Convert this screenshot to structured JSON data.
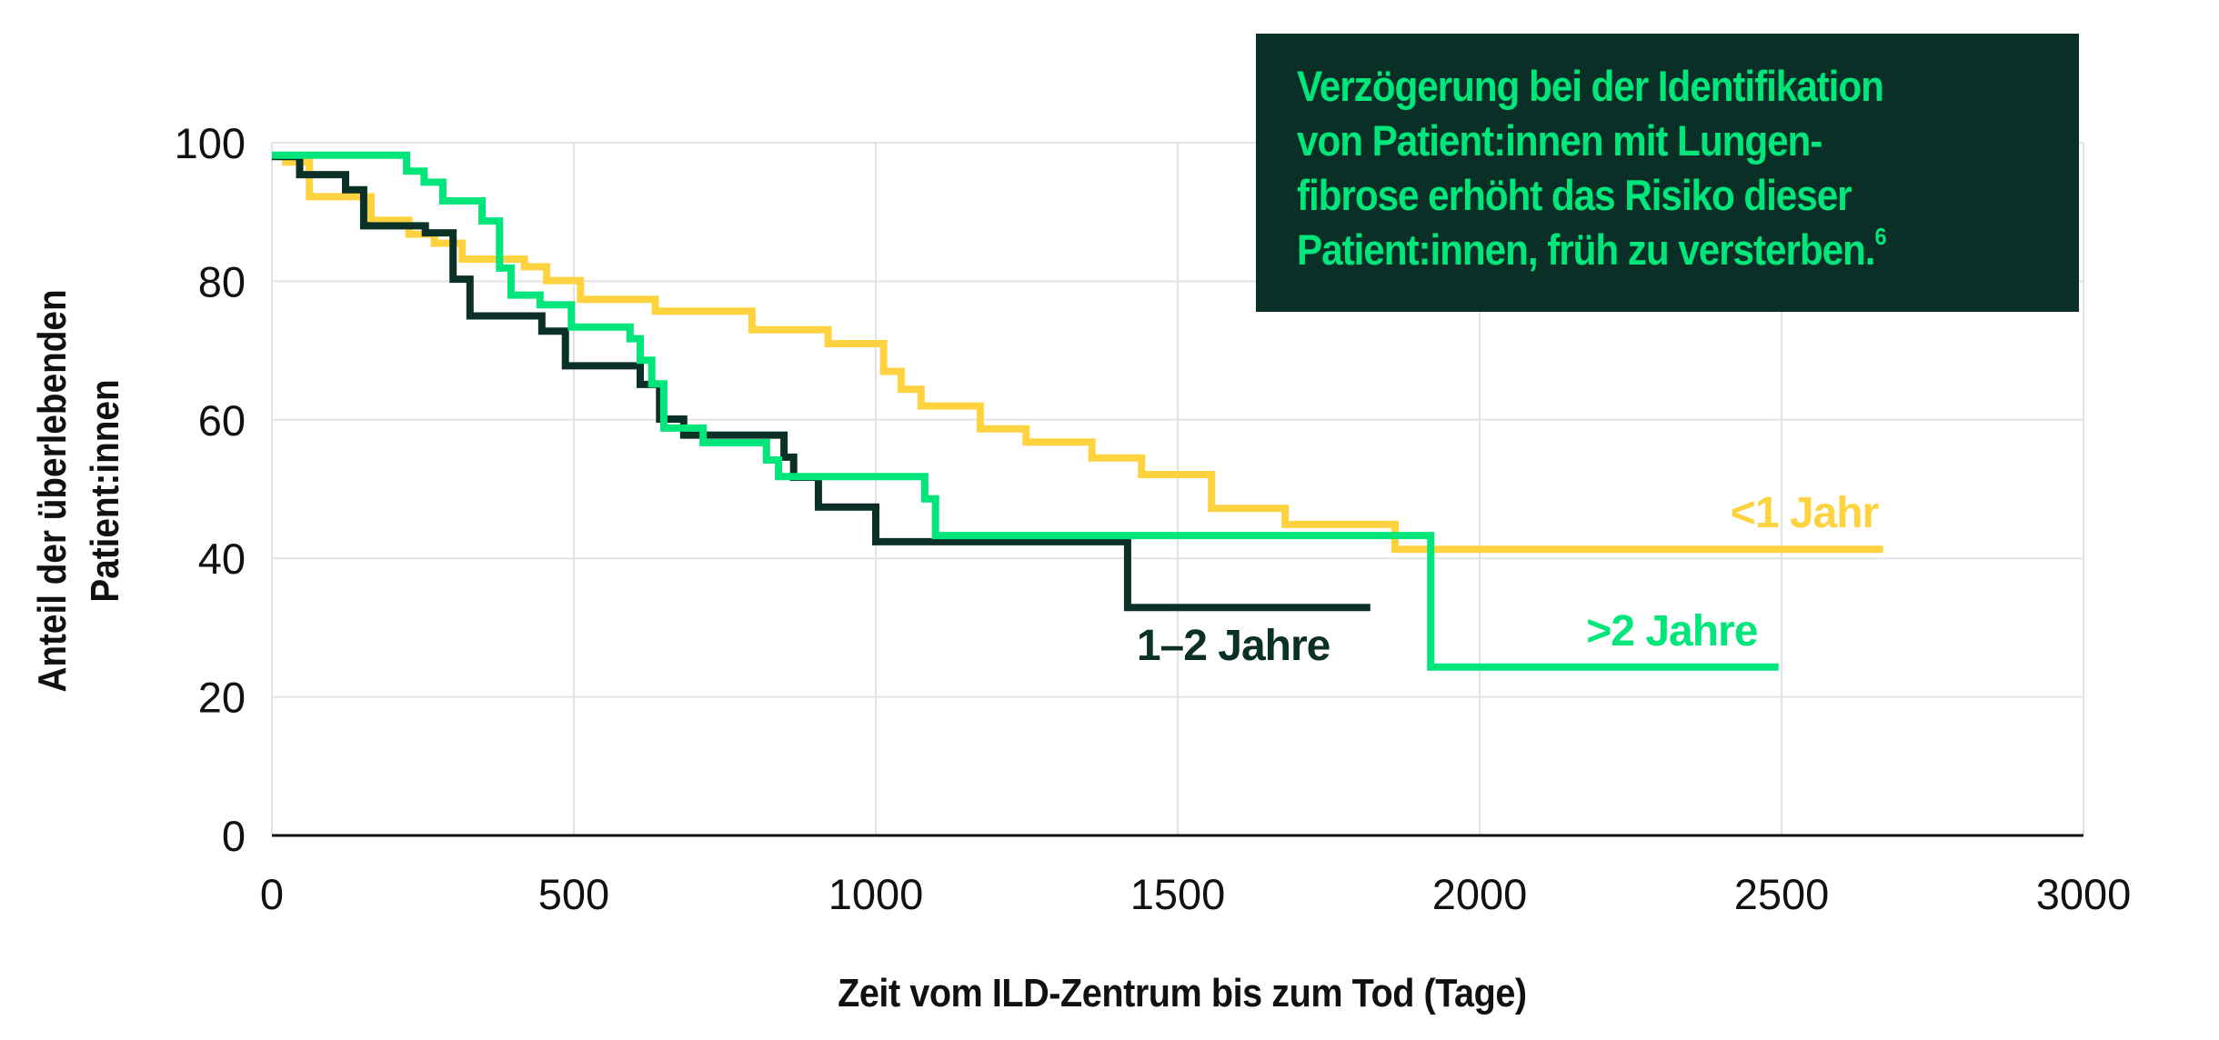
{
  "callout": {
    "lines": [
      "Verzögerung bei der Identifikation",
      "von Patient:innen mit Lungen-",
      "fibrose erhöht das Risiko dieser",
      "Patient:innen, früh zu versterben."
    ],
    "footnote": "6",
    "background": "#0a2f27",
    "text_color": "#00e67b"
  },
  "axes": {
    "ylabel_lines": [
      "Anteil der überlebenden",
      "Patient:innen"
    ],
    "xlabel": "Zeit vom ILD-Zentrum bis zum Tod (Tage)"
  },
  "chart_data": {
    "type": "line",
    "subtype": "kaplan-meier step",
    "title": "Verzögerung bei der Identifikation von Patient:innen mit Lungenfibrose erhöht das Risiko dieser Patient:innen, früh zu versterben.",
    "xlabel": "Zeit vom ILD-Zentrum bis zum Tod (Tage)",
    "ylabel": "Anteil der überlebenden Patient:innen",
    "xlim": [
      0,
      3000
    ],
    "ylim": [
      0,
      100
    ],
    "xticks": [
      0,
      500,
      1000,
      1500,
      2000,
      2500,
      3000
    ],
    "yticks": [
      0,
      20,
      40,
      60,
      80,
      100
    ],
    "grid": true,
    "legend_position": "inline labels at line ends",
    "series": [
      {
        "name": "<1 Jahr",
        "color": "#ffd23f",
        "label_pos": {
          "x_day": 2660,
          "y_val": 44.5,
          "anchor": "end"
        },
        "end_day": 2668,
        "steps": [
          [
            17,
            97.2
          ],
          [
            62,
            92.2
          ],
          [
            164,
            88.8
          ],
          [
            227,
            86.8
          ],
          [
            269,
            85.5
          ],
          [
            315,
            83.2
          ],
          [
            418,
            82.1
          ],
          [
            455,
            80.1
          ],
          [
            511,
            77.4
          ],
          [
            635,
            75.7
          ],
          [
            795,
            73.0
          ],
          [
            921,
            71.0
          ],
          [
            1013,
            67.0
          ],
          [
            1042,
            64.4
          ],
          [
            1075,
            62.0
          ],
          [
            1173,
            58.7
          ],
          [
            1249,
            56.8
          ],
          [
            1358,
            54.5
          ],
          [
            1440,
            52.1
          ],
          [
            1556,
            47.2
          ],
          [
            1678,
            44.9
          ],
          [
            1860,
            41.3
          ]
        ]
      },
      {
        "name": "1–2 Jahre",
        "color": "#0a3028",
        "label_pos": {
          "x_day": 1432,
          "y_val": 25.3,
          "anchor": "start"
        },
        "end_day": 1819,
        "steps": [
          [
            0,
            98.0
          ],
          [
            46,
            95.4
          ],
          [
            122,
            93.2
          ],
          [
            152,
            88.0
          ],
          [
            254,
            87.0
          ],
          [
            300,
            80.3
          ],
          [
            328,
            75.0
          ],
          [
            447,
            72.8
          ],
          [
            486,
            67.8
          ],
          [
            610,
            65.1
          ],
          [
            642,
            60.1
          ],
          [
            682,
            57.8
          ],
          [
            848,
            54.6
          ],
          [
            864,
            51.7
          ],
          [
            905,
            47.4
          ],
          [
            1000,
            42.4
          ],
          [
            1417,
            32.9
          ]
        ]
      },
      {
        "name": ">2 Jahre",
        "color": "#00e67b",
        "label_pos": {
          "x_day": 2460,
          "y_val": 27.4,
          "anchor": "end"
        },
        "end_day": 2495,
        "steps": [
          [
            0,
            98.2
          ],
          [
            223,
            95.9
          ],
          [
            252,
            94.3
          ],
          [
            283,
            91.6
          ],
          [
            348,
            88.7
          ],
          [
            377,
            81.9
          ],
          [
            396,
            78.0
          ],
          [
            444,
            76.6
          ],
          [
            496,
            73.4
          ],
          [
            593,
            71.7
          ],
          [
            610,
            68.6
          ],
          [
            629,
            65.2
          ],
          [
            649,
            58.8
          ],
          [
            714,
            56.7
          ],
          [
            819,
            54.2
          ],
          [
            839,
            51.8
          ],
          [
            1081,
            48.6
          ],
          [
            1099,
            43.3
          ],
          [
            1919,
            24.3
          ]
        ]
      }
    ]
  }
}
